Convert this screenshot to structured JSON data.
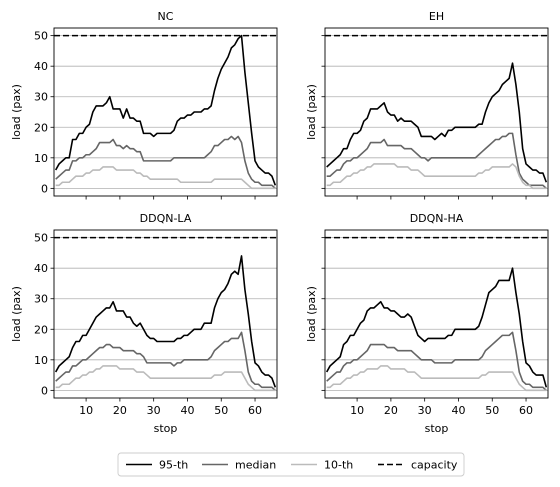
{
  "legend": {
    "placement": "bottom-center",
    "entries": [
      {
        "key": "p95",
        "label": "95-th",
        "color": "#000000",
        "style": "solid"
      },
      {
        "key": "median",
        "label": "median",
        "color": "#666666",
        "style": "solid"
      },
      {
        "key": "p10",
        "label": "10-th",
        "color": "#bbbbbb",
        "style": "solid"
      },
      {
        "key": "capacity",
        "label": "capacity",
        "color": "#000000",
        "style": "dashed"
      }
    ]
  },
  "chart_data": [
    {
      "type": "line",
      "title": "NC",
      "xlabel": "",
      "ylabel": "load (pax)",
      "xlim": [
        0.5,
        66.5
      ],
      "ylim": [
        -2.5,
        52.5
      ],
      "xticks": [
        10,
        20,
        30,
        40,
        50,
        60
      ],
      "yticks": [
        0,
        10,
        20,
        30,
        40,
        50
      ],
      "grid": "y",
      "capacity": 50,
      "x": [
        1,
        2,
        3,
        4,
        5,
        6,
        7,
        8,
        9,
        10,
        11,
        12,
        13,
        14,
        15,
        16,
        17,
        18,
        19,
        20,
        21,
        22,
        23,
        24,
        25,
        26,
        27,
        28,
        29,
        30,
        31,
        32,
        33,
        34,
        35,
        36,
        37,
        38,
        39,
        40,
        41,
        42,
        43,
        44,
        45,
        46,
        47,
        48,
        49,
        50,
        51,
        52,
        53,
        54,
        55,
        56,
        57,
        58,
        59,
        60,
        61,
        62,
        63,
        64,
        65,
        66
      ],
      "series": [
        {
          "name": "95-th",
          "values": [
            6,
            8,
            9,
            10,
            10,
            16,
            16,
            18,
            18,
            20,
            21,
            25,
            27,
            27,
            27,
            28,
            30,
            26,
            26,
            26,
            23,
            26,
            23,
            23,
            22,
            22,
            18,
            18,
            18,
            17,
            18,
            18,
            18,
            18,
            18,
            19,
            22,
            23,
            23,
            24,
            24,
            25,
            25,
            25,
            26,
            26,
            27,
            32,
            36,
            39,
            41,
            43,
            46,
            47,
            49,
            50,
            38,
            28,
            18,
            9,
            7,
            6,
            5,
            5,
            4,
            1
          ]
        },
        {
          "name": "median",
          "values": [
            3,
            4,
            5,
            6,
            6,
            9,
            9,
            10,
            10,
            11,
            11,
            12,
            13,
            15,
            15,
            15,
            15,
            16,
            14,
            14,
            13,
            14,
            13,
            13,
            12,
            12,
            9,
            9,
            9,
            9,
            9,
            9,
            9,
            9,
            9,
            10,
            10,
            10,
            10,
            10,
            10,
            10,
            10,
            10,
            10,
            11,
            12,
            14,
            14,
            15,
            16,
            16,
            17,
            16,
            17,
            15,
            9,
            5,
            3,
            2,
            2,
            1,
            1,
            1,
            1,
            0
          ]
        },
        {
          "name": "10-th",
          "values": [
            1,
            1,
            2,
            2,
            2,
            3,
            4,
            4,
            4,
            5,
            5,
            6,
            6,
            6,
            7,
            7,
            7,
            7,
            6,
            6,
            6,
            6,
            6,
            6,
            5,
            5,
            4,
            4,
            3,
            3,
            3,
            3,
            3,
            3,
            3,
            3,
            3,
            2,
            2,
            2,
            2,
            2,
            2,
            2,
            2,
            2,
            2,
            3,
            3,
            3,
            3,
            3,
            3,
            3,
            3,
            3,
            2,
            1,
            0,
            0,
            0,
            0,
            0,
            0,
            0,
            0
          ]
        }
      ]
    },
    {
      "type": "line",
      "title": "EH",
      "xlabel": "",
      "ylabel": "load (pax)",
      "xlim": [
        0.5,
        66.5
      ],
      "ylim": [
        -2.5,
        52.5
      ],
      "xticks": [
        10,
        20,
        30,
        40,
        50,
        60
      ],
      "yticks": [
        0,
        10,
        20,
        30,
        40,
        50
      ],
      "grid": "y",
      "capacity": 50,
      "x": [
        1,
        2,
        3,
        4,
        5,
        6,
        7,
        8,
        9,
        10,
        11,
        12,
        13,
        14,
        15,
        16,
        17,
        18,
        19,
        20,
        21,
        22,
        23,
        24,
        25,
        26,
        27,
        28,
        29,
        30,
        31,
        32,
        33,
        34,
        35,
        36,
        37,
        38,
        39,
        40,
        41,
        42,
        43,
        44,
        45,
        46,
        47,
        48,
        49,
        50,
        51,
        52,
        53,
        54,
        55,
        56,
        57,
        58,
        59,
        60,
        61,
        62,
        63,
        64,
        65,
        66
      ],
      "series": [
        {
          "name": "95-th",
          "values": [
            7,
            8,
            9,
            10,
            11,
            13,
            13,
            16,
            18,
            18,
            19,
            22,
            23,
            26,
            26,
            26,
            27,
            28,
            25,
            24,
            24,
            22,
            23,
            22,
            22,
            22,
            21,
            20,
            17,
            17,
            17,
            17,
            16,
            17,
            18,
            17,
            19,
            19,
            20,
            20,
            20,
            20,
            20,
            20,
            20,
            21,
            21,
            25,
            28,
            30,
            31,
            32,
            34,
            35,
            36,
            41,
            34,
            25,
            13,
            8,
            7,
            6,
            6,
            5,
            5,
            2
          ]
        },
        {
          "name": "median",
          "values": [
            4,
            4,
            5,
            6,
            6,
            8,
            9,
            9,
            10,
            10,
            11,
            12,
            13,
            15,
            15,
            15,
            15,
            16,
            14,
            14,
            14,
            14,
            14,
            13,
            13,
            13,
            12,
            11,
            10,
            10,
            9,
            10,
            10,
            10,
            10,
            10,
            10,
            10,
            10,
            10,
            10,
            10,
            10,
            10,
            10,
            11,
            12,
            13,
            14,
            15,
            16,
            16,
            17,
            17,
            18,
            18,
            11,
            5,
            3,
            2,
            1,
            1,
            1,
            1,
            1,
            0
          ]
        },
        {
          "name": "10-th",
          "values": [
            1,
            1,
            2,
            2,
            2,
            3,
            4,
            4,
            5,
            5,
            6,
            6,
            7,
            7,
            8,
            8,
            8,
            8,
            8,
            8,
            8,
            7,
            7,
            7,
            7,
            6,
            6,
            6,
            5,
            4,
            4,
            4,
            4,
            4,
            4,
            4,
            4,
            4,
            4,
            4,
            4,
            4,
            4,
            4,
            4,
            5,
            5,
            6,
            6,
            7,
            7,
            7,
            7,
            7,
            7,
            8,
            7,
            4,
            2,
            1,
            1,
            0,
            0,
            0,
            0,
            0
          ]
        }
      ]
    },
    {
      "type": "line",
      "title": "DDQN-LA",
      "xlabel": "stop",
      "ylabel": "load (pax)",
      "xlim": [
        0.5,
        66.5
      ],
      "ylim": [
        -2.5,
        52.5
      ],
      "xticks": [
        10,
        20,
        30,
        40,
        50,
        60
      ],
      "yticks": [
        0,
        10,
        20,
        30,
        40,
        50
      ],
      "grid": "y",
      "capacity": 50,
      "x": [
        1,
        2,
        3,
        4,
        5,
        6,
        7,
        8,
        9,
        10,
        11,
        12,
        13,
        14,
        15,
        16,
        17,
        18,
        19,
        20,
        21,
        22,
        23,
        24,
        25,
        26,
        27,
        28,
        29,
        30,
        31,
        32,
        33,
        34,
        35,
        36,
        37,
        38,
        39,
        40,
        41,
        42,
        43,
        44,
        45,
        46,
        47,
        48,
        49,
        50,
        51,
        52,
        53,
        54,
        55,
        56,
        57,
        58,
        59,
        60,
        61,
        62,
        63,
        64,
        65,
        66
      ],
      "series": [
        {
          "name": "95-th",
          "values": [
            6,
            8,
            9,
            10,
            11,
            14,
            16,
            16,
            18,
            18,
            20,
            22,
            24,
            25,
            26,
            27,
            27,
            29,
            26,
            26,
            26,
            24,
            24,
            22,
            21,
            22,
            20,
            18,
            17,
            17,
            16,
            16,
            16,
            16,
            16,
            16,
            17,
            17,
            18,
            18,
            19,
            20,
            20,
            20,
            22,
            22,
            22,
            27,
            30,
            32,
            33,
            35,
            38,
            39,
            38,
            44,
            33,
            25,
            16,
            9,
            8,
            6,
            5,
            5,
            4,
            1
          ]
        },
        {
          "name": "median",
          "values": [
            3,
            4,
            5,
            6,
            6,
            8,
            8,
            9,
            10,
            10,
            11,
            12,
            13,
            14,
            14,
            15,
            15,
            14,
            14,
            14,
            13,
            13,
            13,
            13,
            12,
            12,
            11,
            9,
            9,
            9,
            9,
            9,
            9,
            9,
            9,
            8,
            9,
            9,
            10,
            10,
            10,
            10,
            10,
            10,
            10,
            10,
            11,
            13,
            14,
            15,
            16,
            16,
            17,
            17,
            17,
            19,
            13,
            6,
            3,
            2,
            2,
            1,
            1,
            1,
            1,
            0
          ]
        },
        {
          "name": "10-th",
          "values": [
            1,
            1,
            2,
            2,
            2,
            3,
            4,
            4,
            5,
            5,
            6,
            6,
            7,
            7,
            8,
            8,
            8,
            8,
            8,
            7,
            7,
            7,
            7,
            7,
            6,
            6,
            6,
            5,
            4,
            4,
            4,
            4,
            4,
            4,
            4,
            4,
            4,
            4,
            4,
            4,
            4,
            4,
            4,
            4,
            4,
            4,
            4,
            5,
            5,
            5,
            6,
            6,
            6,
            6,
            6,
            6,
            4,
            2,
            1,
            0,
            0,
            0,
            0,
            0,
            0,
            0
          ]
        }
      ]
    },
    {
      "type": "line",
      "title": "DDQN-HA",
      "xlabel": "stop",
      "ylabel": "load (pax)",
      "xlim": [
        0.5,
        66.5
      ],
      "ylim": [
        -2.5,
        52.5
      ],
      "xticks": [
        10,
        20,
        30,
        40,
        50,
        60
      ],
      "yticks": [
        0,
        10,
        20,
        30,
        40,
        50
      ],
      "grid": "y",
      "capacity": 50,
      "x": [
        1,
        2,
        3,
        4,
        5,
        6,
        7,
        8,
        9,
        10,
        11,
        12,
        13,
        14,
        15,
        16,
        17,
        18,
        19,
        20,
        21,
        22,
        23,
        24,
        25,
        26,
        27,
        28,
        29,
        30,
        31,
        32,
        33,
        34,
        35,
        36,
        37,
        38,
        39,
        40,
        41,
        42,
        43,
        44,
        45,
        46,
        47,
        48,
        49,
        50,
        51,
        52,
        53,
        54,
        55,
        56,
        57,
        58,
        59,
        60,
        61,
        62,
        63,
        64,
        65,
        66
      ],
      "series": [
        {
          "name": "95-th",
          "values": [
            6,
            8,
            9,
            10,
            11,
            15,
            16,
            18,
            18,
            20,
            22,
            23,
            26,
            27,
            27,
            28,
            29,
            27,
            27,
            26,
            26,
            25,
            24,
            24,
            25,
            24,
            21,
            18,
            17,
            16,
            17,
            17,
            17,
            17,
            17,
            17,
            18,
            18,
            20,
            20,
            20,
            20,
            20,
            20,
            20,
            21,
            24,
            28,
            32,
            33,
            34,
            36,
            36,
            36,
            36,
            40,
            32,
            25,
            16,
            9,
            8,
            6,
            5,
            5,
            5,
            1
          ]
        },
        {
          "name": "median",
          "values": [
            3,
            4,
            5,
            6,
            6,
            8,
            9,
            9,
            10,
            10,
            11,
            12,
            13,
            15,
            15,
            15,
            15,
            15,
            14,
            14,
            14,
            13,
            13,
            13,
            13,
            13,
            12,
            11,
            10,
            10,
            10,
            10,
            9,
            9,
            9,
            9,
            9,
            9,
            10,
            10,
            10,
            10,
            10,
            10,
            10,
            10,
            11,
            13,
            14,
            15,
            16,
            17,
            18,
            18,
            18,
            19,
            13,
            6,
            3,
            2,
            2,
            1,
            1,
            1,
            1,
            0
          ]
        },
        {
          "name": "10-th",
          "values": [
            1,
            1,
            2,
            2,
            2,
            3,
            4,
            4,
            5,
            5,
            6,
            6,
            7,
            7,
            7,
            7,
            8,
            8,
            8,
            7,
            7,
            7,
            7,
            7,
            6,
            6,
            6,
            5,
            4,
            4,
            4,
            4,
            4,
            4,
            4,
            4,
            4,
            4,
            4,
            4,
            4,
            4,
            4,
            4,
            4,
            4,
            5,
            5,
            6,
            6,
            6,
            6,
            6,
            6,
            6,
            6,
            4,
            2,
            1,
            0,
            0,
            0,
            0,
            0,
            0,
            0
          ]
        }
      ]
    }
  ]
}
